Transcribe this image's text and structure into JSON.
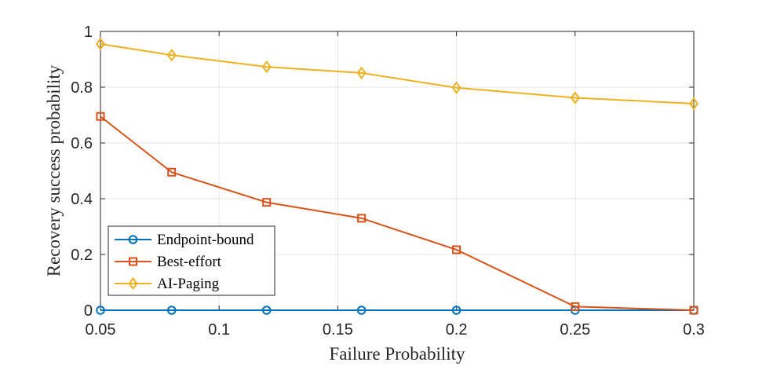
{
  "chart_data": {
    "type": "line",
    "xlabel": "Failure Probability",
    "ylabel": "Recovery success probability",
    "xlim": [
      0.05,
      0.3
    ],
    "ylim": [
      0,
      1
    ],
    "xticks": [
      0.05,
      0.1,
      0.15,
      0.2,
      0.25,
      0.3
    ],
    "xtick_labels": [
      "0.05",
      "0.1",
      "0.15",
      "0.2",
      "0.25",
      "0.3"
    ],
    "yticks": [
      0,
      0.2,
      0.4,
      0.6,
      0.8,
      1
    ],
    "ytick_labels": [
      "0",
      "0.2",
      "0.4",
      "0.6",
      "0.8",
      "1"
    ],
    "grid": true,
    "legend_position": "bottom-left",
    "x": [
      0.05,
      0.08,
      0.12,
      0.16,
      0.2,
      0.25,
      0.3
    ],
    "series": [
      {
        "name": "Endpoint-bound",
        "color": "#0072BD",
        "marker": "circle",
        "values": [
          0,
          0,
          0,
          0,
          0,
          0,
          0
        ]
      },
      {
        "name": "Best-effort",
        "color": "#D95319",
        "marker": "square",
        "values": [
          0.695,
          0.495,
          0.387,
          0.33,
          0.217,
          0.013,
          0
        ]
      },
      {
        "name": "AI-Paging",
        "color": "#EDB120",
        "marker": "diamond",
        "values": [
          0.955,
          0.915,
          0.873,
          0.851,
          0.798,
          0.762,
          0.741
        ]
      }
    ]
  }
}
